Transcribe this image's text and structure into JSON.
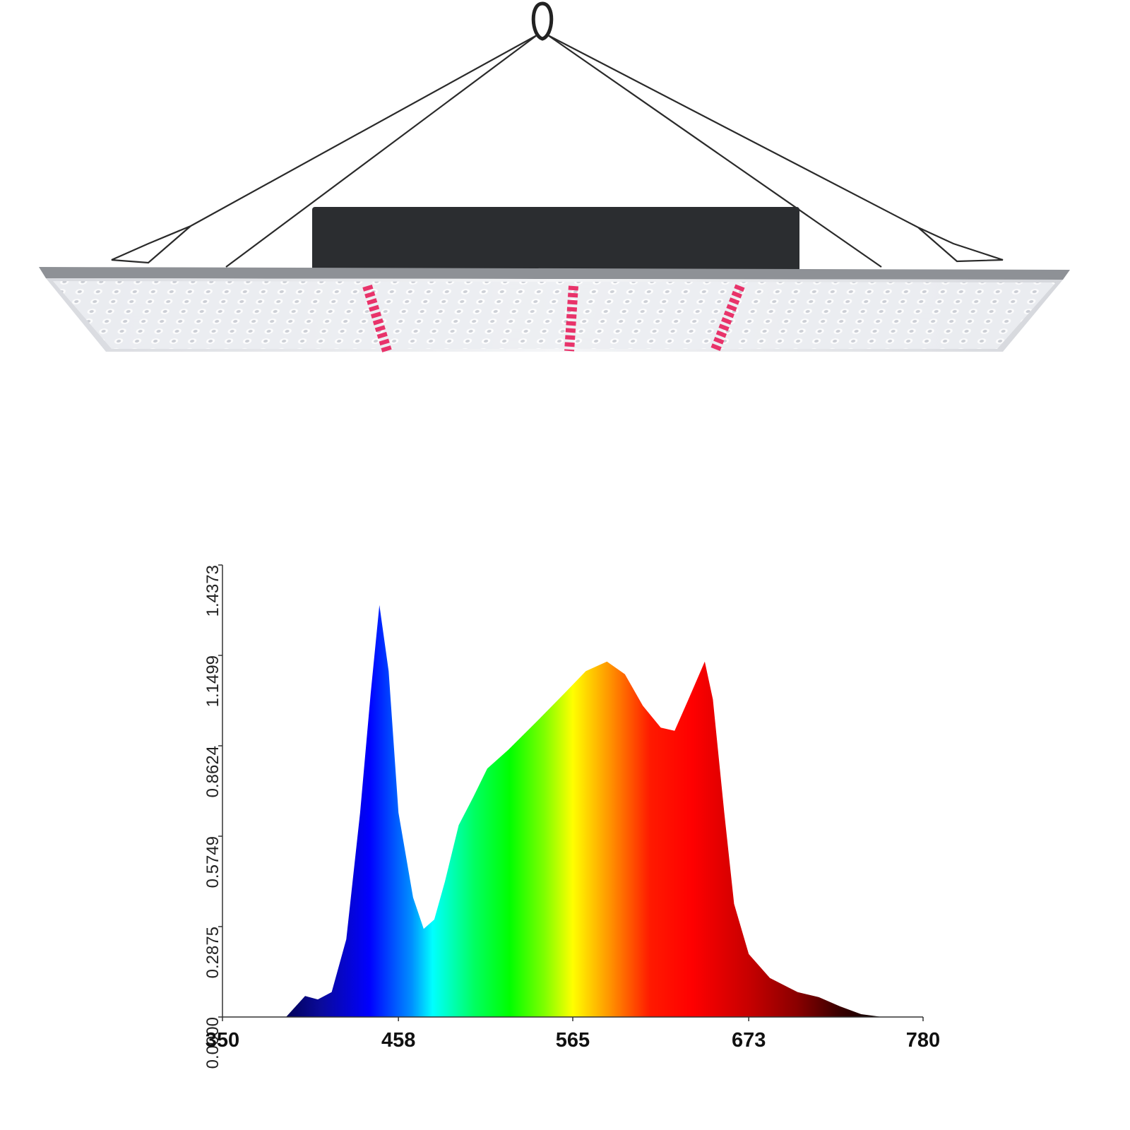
{
  "chart_data": {
    "type": "area",
    "x": [
      389,
      400.7,
      408.5,
      417,
      426,
      434.5,
      441,
      446.3,
      452,
      458,
      467,
      473.5,
      480,
      486.5,
      495,
      504,
      512.5,
      525.5,
      543,
      560,
      573,
      586,
      597,
      608,
      619,
      627.5,
      636,
      646,
      651,
      658,
      664,
      673,
      686,
      703,
      716,
      729,
      742,
      755
    ],
    "values": [
      0,
      0.067,
      0.056,
      0.079,
      0.247,
      0.65,
      1.03,
      1.31,
      1.1,
      0.65,
      0.38,
      0.28,
      0.31,
      0.43,
      0.61,
      0.7,
      0.79,
      0.85,
      0.94,
      1.03,
      1.1,
      1.13,
      1.09,
      0.99,
      0.92,
      0.91,
      1.01,
      1.13,
      1.01,
      0.65,
      0.36,
      0.2,
      0.124,
      0.079,
      0.063,
      0.034,
      0.009,
      0
    ],
    "xlim": [
      350,
      780
    ],
    "xticks": [
      350,
      458,
      565,
      673,
      780
    ],
    "ylim": [
      0,
      1.4373
    ],
    "yticks": [
      {
        "value": 0,
        "label": "0.0000"
      },
      0.2875,
      0.5749,
      0.8624,
      1.1499,
      1.4373
    ],
    "grid": false
  }
}
